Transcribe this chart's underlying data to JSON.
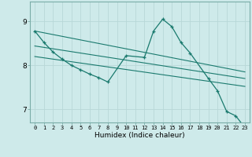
{
  "xlabel": "Humidex (Indice chaleur)",
  "background_color": "#ceeaea",
  "grid_color": "#b8d8d8",
  "line_color": "#1a7a6e",
  "xlim": [
    -0.5,
    23.5
  ],
  "ylim": [
    6.7,
    9.45
  ],
  "yticks": [
    7,
    8,
    9
  ],
  "xticks": [
    0,
    1,
    2,
    3,
    4,
    5,
    6,
    7,
    8,
    9,
    10,
    11,
    12,
    13,
    14,
    15,
    16,
    17,
    18,
    19,
    20,
    21,
    22,
    23
  ],
  "main_x": [
    0,
    1,
    2,
    3,
    4,
    5,
    6,
    7,
    8,
    10,
    12,
    13,
    14,
    15,
    16,
    17,
    19,
    20,
    21,
    22,
    23
  ],
  "main_y": [
    8.78,
    8.52,
    8.3,
    8.14,
    8.0,
    7.9,
    7.8,
    7.72,
    7.62,
    8.22,
    8.18,
    8.78,
    9.05,
    8.88,
    8.52,
    8.28,
    7.7,
    7.42,
    6.95,
    6.85,
    6.58
  ],
  "line1_x": [
    0,
    23
  ],
  "line1_y": [
    8.78,
    7.85
  ],
  "line2_x": [
    0,
    23
  ],
  "line2_y": [
    8.44,
    7.7
  ],
  "line3_x": [
    0,
    23
  ],
  "line3_y": [
    8.2,
    7.52
  ]
}
